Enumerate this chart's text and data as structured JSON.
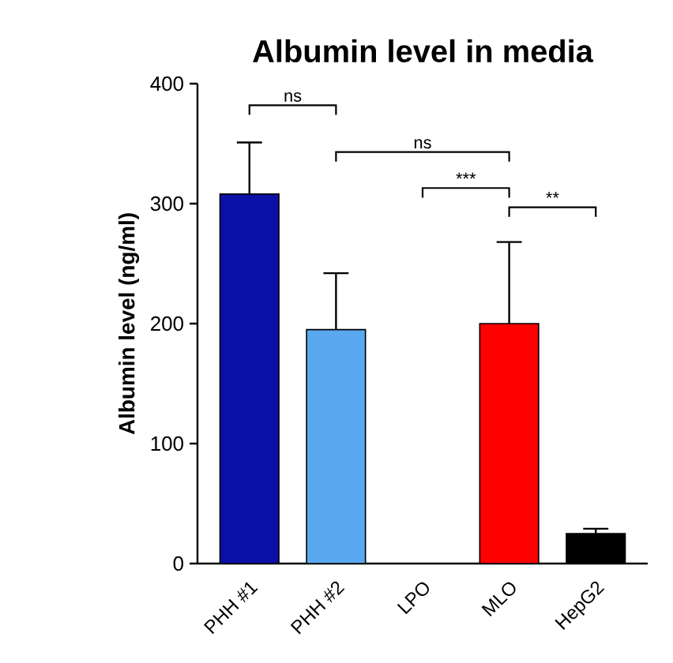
{
  "chart_data": {
    "type": "bar",
    "title": "Albumin level in media",
    "ylabel": "Albumin level (ng/ml)",
    "categories": [
      "PHH #1",
      "PHH #2",
      "LPO",
      "MLO",
      "HepG2"
    ],
    "values": [
      308,
      195,
      0,
      200,
      25
    ],
    "colors": [
      "#0a10a8",
      "#5aa8f0",
      "#808080",
      "#ff0000",
      "#000000"
    ],
    "errors": [
      [
        308,
        351
      ],
      [
        195,
        242
      ],
      null,
      [
        200,
        268
      ],
      [
        25,
        29
      ]
    ],
    "ylim": [
      0,
      400
    ],
    "yticks": [
      0,
      100,
      200,
      300,
      400
    ],
    "grid": false,
    "annotations": [
      "ns",
      "ns",
      "***",
      "**"
    ]
  }
}
